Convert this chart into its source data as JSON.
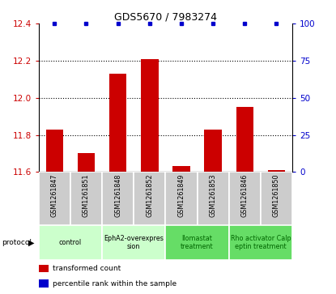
{
  "title": "GDS5670 / 7983274",
  "samples": [
    "GSM1261847",
    "GSM1261851",
    "GSM1261848",
    "GSM1261852",
    "GSM1261849",
    "GSM1261853",
    "GSM1261846",
    "GSM1261850"
  ],
  "transformed_counts": [
    11.83,
    11.7,
    12.13,
    12.21,
    11.63,
    11.83,
    11.95,
    11.61
  ],
  "percentile_ranks": [
    100,
    100,
    100,
    100,
    100,
    100,
    100,
    100
  ],
  "bar_bottom": 11.6,
  "ylim_left": [
    11.6,
    12.4
  ],
  "ylim_right": [
    0,
    100
  ],
  "yticks_left": [
    11.6,
    11.8,
    12.0,
    12.2,
    12.4
  ],
  "yticks_right": [
    0,
    25,
    50,
    75,
    100
  ],
  "protocols": [
    {
      "label": "control",
      "start": 0,
      "end": 2,
      "color": "#ccffcc",
      "text_color": "#000000"
    },
    {
      "label": "EphA2-overexpres\nsion",
      "start": 2,
      "end": 4,
      "color": "#ccffcc",
      "text_color": "#000000"
    },
    {
      "label": "Ilomastat\ntreatment",
      "start": 4,
      "end": 6,
      "color": "#66dd66",
      "text_color": "#006600"
    },
    {
      "label": "Rho activator Calp\neptin treatment",
      "start": 6,
      "end": 8,
      "color": "#66dd66",
      "text_color": "#006600"
    }
  ],
  "bar_color": "#cc0000",
  "dot_color": "#0000cc",
  "sample_box_color": "#cccccc",
  "ytick_left_color": "#cc0000",
  "ytick_right_color": "#0000cc",
  "grid_yticks": [
    11.8,
    12.0,
    12.2
  ],
  "legend": [
    {
      "color": "#cc0000",
      "label": "transformed count"
    },
    {
      "color": "#0000cc",
      "label": "percentile rank within the sample"
    }
  ]
}
